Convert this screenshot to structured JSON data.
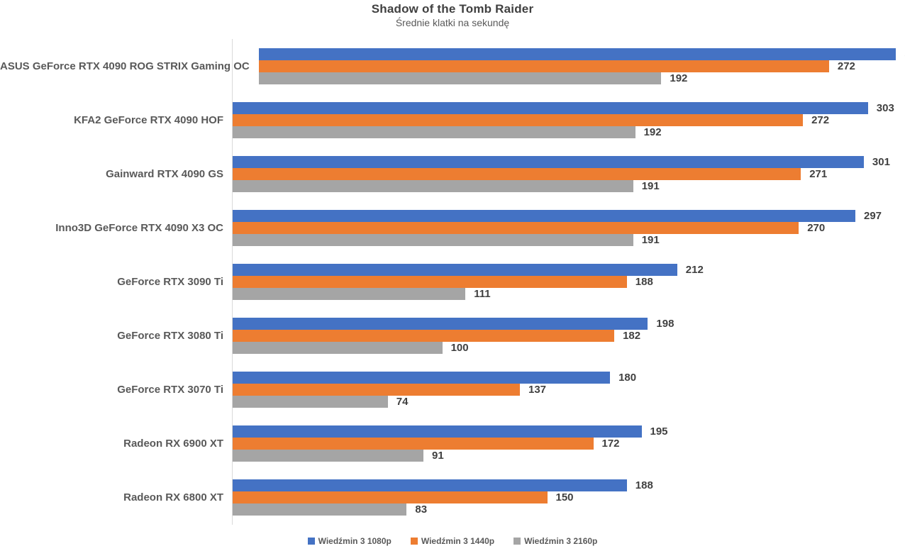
{
  "chart_data": {
    "type": "bar",
    "orientation": "horizontal",
    "title": "Shadow of the Tomb Raider",
    "subtitle": "Średnie klatki na sekundę",
    "categories": [
      "ASUS GeForce RTX 4090 ROG STRIX Gaming OC",
      "KFA2 GeForce RTX 4090 HOF",
      "Gainward RTX 4090 GS",
      "Inno3D GeForce RTX 4090 X3 OC",
      "GeForce RTX 3090 Ti",
      "GeForce RTX 3080 Ti",
      "GeForce RTX 3070 Ti",
      "Radeon RX 6900 XT",
      "Radeon RX 6800 XT"
    ],
    "series": [
      {
        "name": "Wiedźmin 3 1080p",
        "slug": "1080p",
        "color": "#4472C4",
        "values": [
          304,
          303,
          301,
          297,
          212,
          198,
          180,
          195,
          188
        ]
      },
      {
        "name": "Wiedźmin 3 1440p",
        "slug": "1440p",
        "color": "#ED7D31",
        "values": [
          272,
          272,
          271,
          270,
          188,
          182,
          137,
          172,
          150
        ]
      },
      {
        "name": "Wiedźmin 3 2160p",
        "slug": "2160p",
        "color": "#A5A5A5",
        "values": [
          192,
          192,
          191,
          191,
          111,
          100,
          74,
          91,
          83
        ]
      }
    ],
    "xlim": [
      0,
      321
    ],
    "grid": false,
    "value_labels": true,
    "legend_position": "bottom"
  },
  "colors": {
    "axis_line": "#D9D9D9",
    "title_text": "#404040",
    "subtitle_text": "#595959",
    "category_text": "#595959",
    "value_text": "#404040"
  }
}
